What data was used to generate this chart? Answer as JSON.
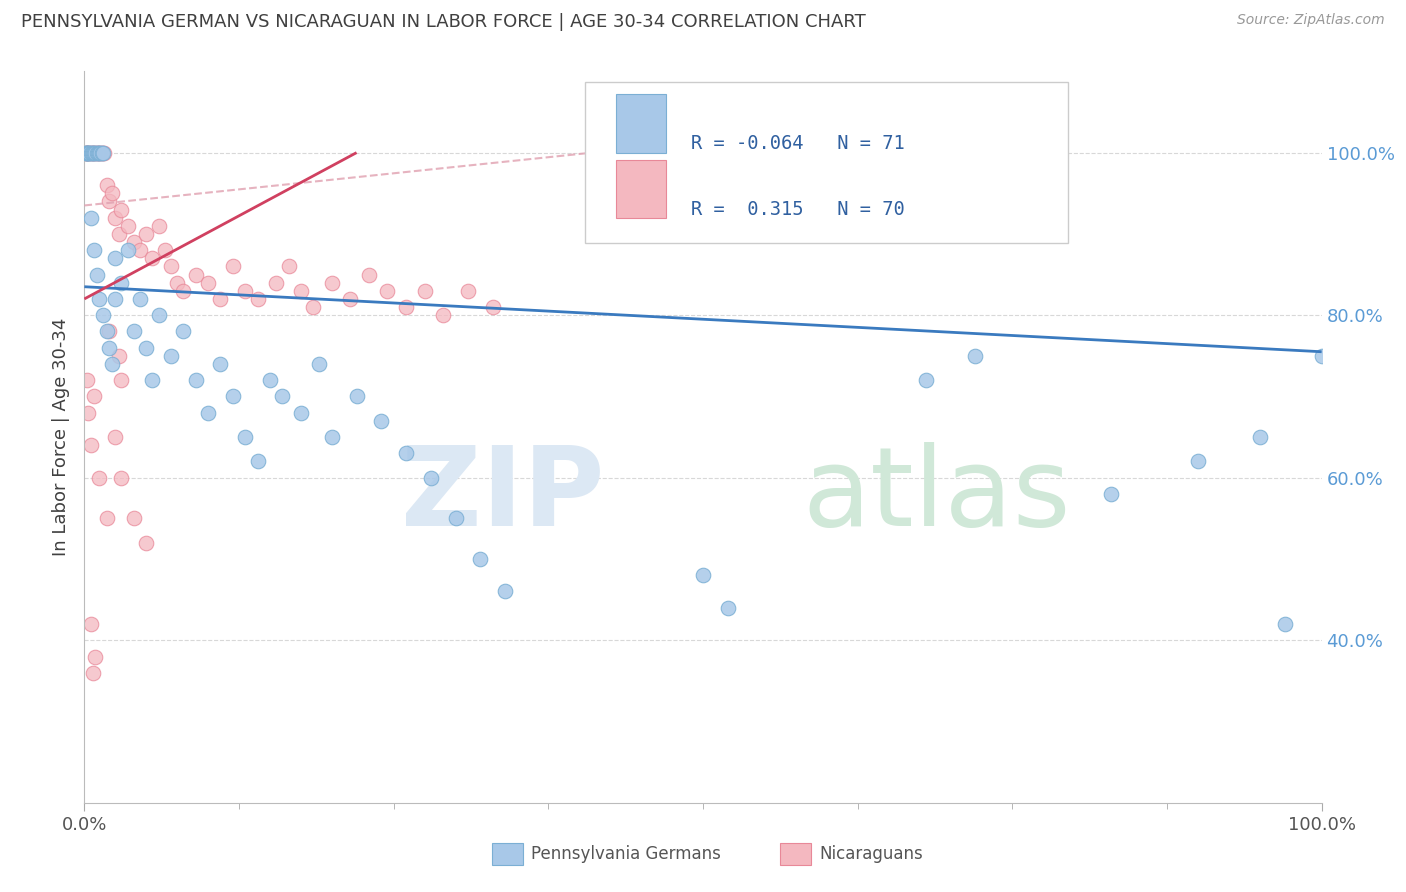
{
  "title": "PENNSYLVANIA GERMAN VS NICARAGUAN IN LABOR FORCE | AGE 30-34 CORRELATION CHART",
  "source": "Source: ZipAtlas.com",
  "ylabel": "In Labor Force | Age 30-34",
  "legend_r_blue": "-0.064",
  "legend_n_blue": "71",
  "legend_r_pink": "0.315",
  "legend_n_pink": "70",
  "blue_color": "#a8c8e8",
  "blue_edge_color": "#7bafd4",
  "pink_color": "#f4b8c0",
  "pink_edge_color": "#e88898",
  "blue_line_color": "#3a7abf",
  "pink_line_color": "#d04060",
  "pink_dash_color": "#e0a0b0",
  "background_color": "#ffffff",
  "grid_color": "#d8d8d8",
  "ytick_color": "#5b9bd5",
  "title_color": "#404040",
  "ylabel_color": "#404040",
  "source_color": "#999999",
  "watermark_zip_color": "#dce8f4",
  "watermark_atlas_color": "#d0e8d8",
  "legend_border_color": "#cccccc",
  "bottom_legend_color": "#555555"
}
